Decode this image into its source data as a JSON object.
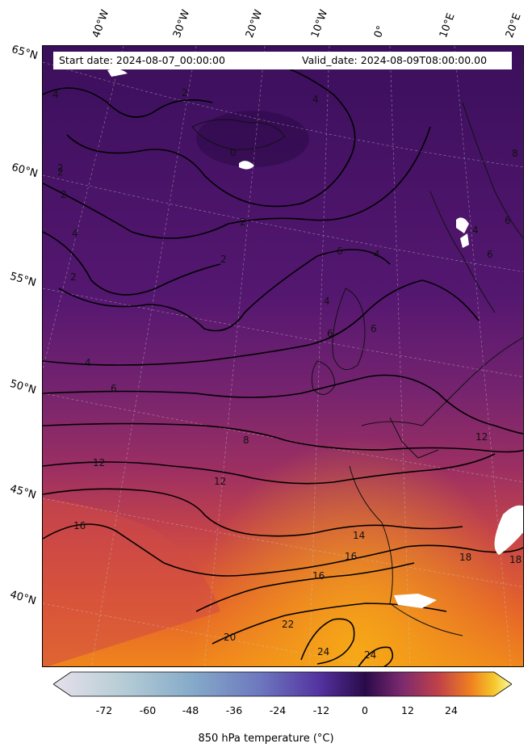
{
  "header": {
    "start_date": "Start date: 2024-08-07_00:00:00",
    "valid_date": "Valid_date: 2024-08-09T08:00:00.00"
  },
  "graticule": {
    "longitudes": [
      "40°W",
      "30°W",
      "20°W",
      "10°W",
      "0°",
      "10°E",
      "20°E"
    ],
    "latitudes": [
      "65°N",
      "60°N",
      "55°N",
      "50°N",
      "45°N",
      "40°N"
    ]
  },
  "contours": {
    "labels": [
      "2",
      "4",
      "2",
      "2",
      "4",
      "0",
      "2",
      "2",
      "4",
      "2",
      "6",
      "4",
      "6",
      "8",
      "6",
      "4",
      "6",
      "4",
      "2",
      "6",
      "4",
      "6",
      "8",
      "12",
      "12",
      "12",
      "16",
      "14",
      "16",
      "18",
      "16",
      "18",
      "20",
      "22",
      "24",
      "24"
    ]
  },
  "colorbar": {
    "title": "850 hPa temperature (∘C)",
    "title_display": "850 hPa temperature (°C)",
    "ticks": [
      "-72",
      "-60",
      "-48",
      "-36",
      "-24",
      "-12",
      "0",
      "12",
      "24"
    ],
    "tick_values": [
      -72,
      -60,
      -48,
      -36,
      -24,
      -12,
      0,
      12,
      24
    ],
    "range": [
      -84,
      36
    ],
    "extend": "both",
    "colormap": "inferno-like with light-blue low end",
    "colors": [
      "#e7e0ea",
      "#8fb4c9",
      "#6a7fc0",
      "#5a3a9c",
      "#3b0f5c",
      "#2a0a4a",
      "#7b2a6e",
      "#c0414a",
      "#f07f20",
      "#f5c52a",
      "#fbfc9c"
    ]
  },
  "legend_colors": {
    "ocean_cold": "#3a0f5c",
    "mid": "#5c1a74",
    "warm1": "#8e2a6b",
    "warm2": "#c0424b",
    "warm3": "#e8632a",
    "hot": "#f28a1c"
  }
}
